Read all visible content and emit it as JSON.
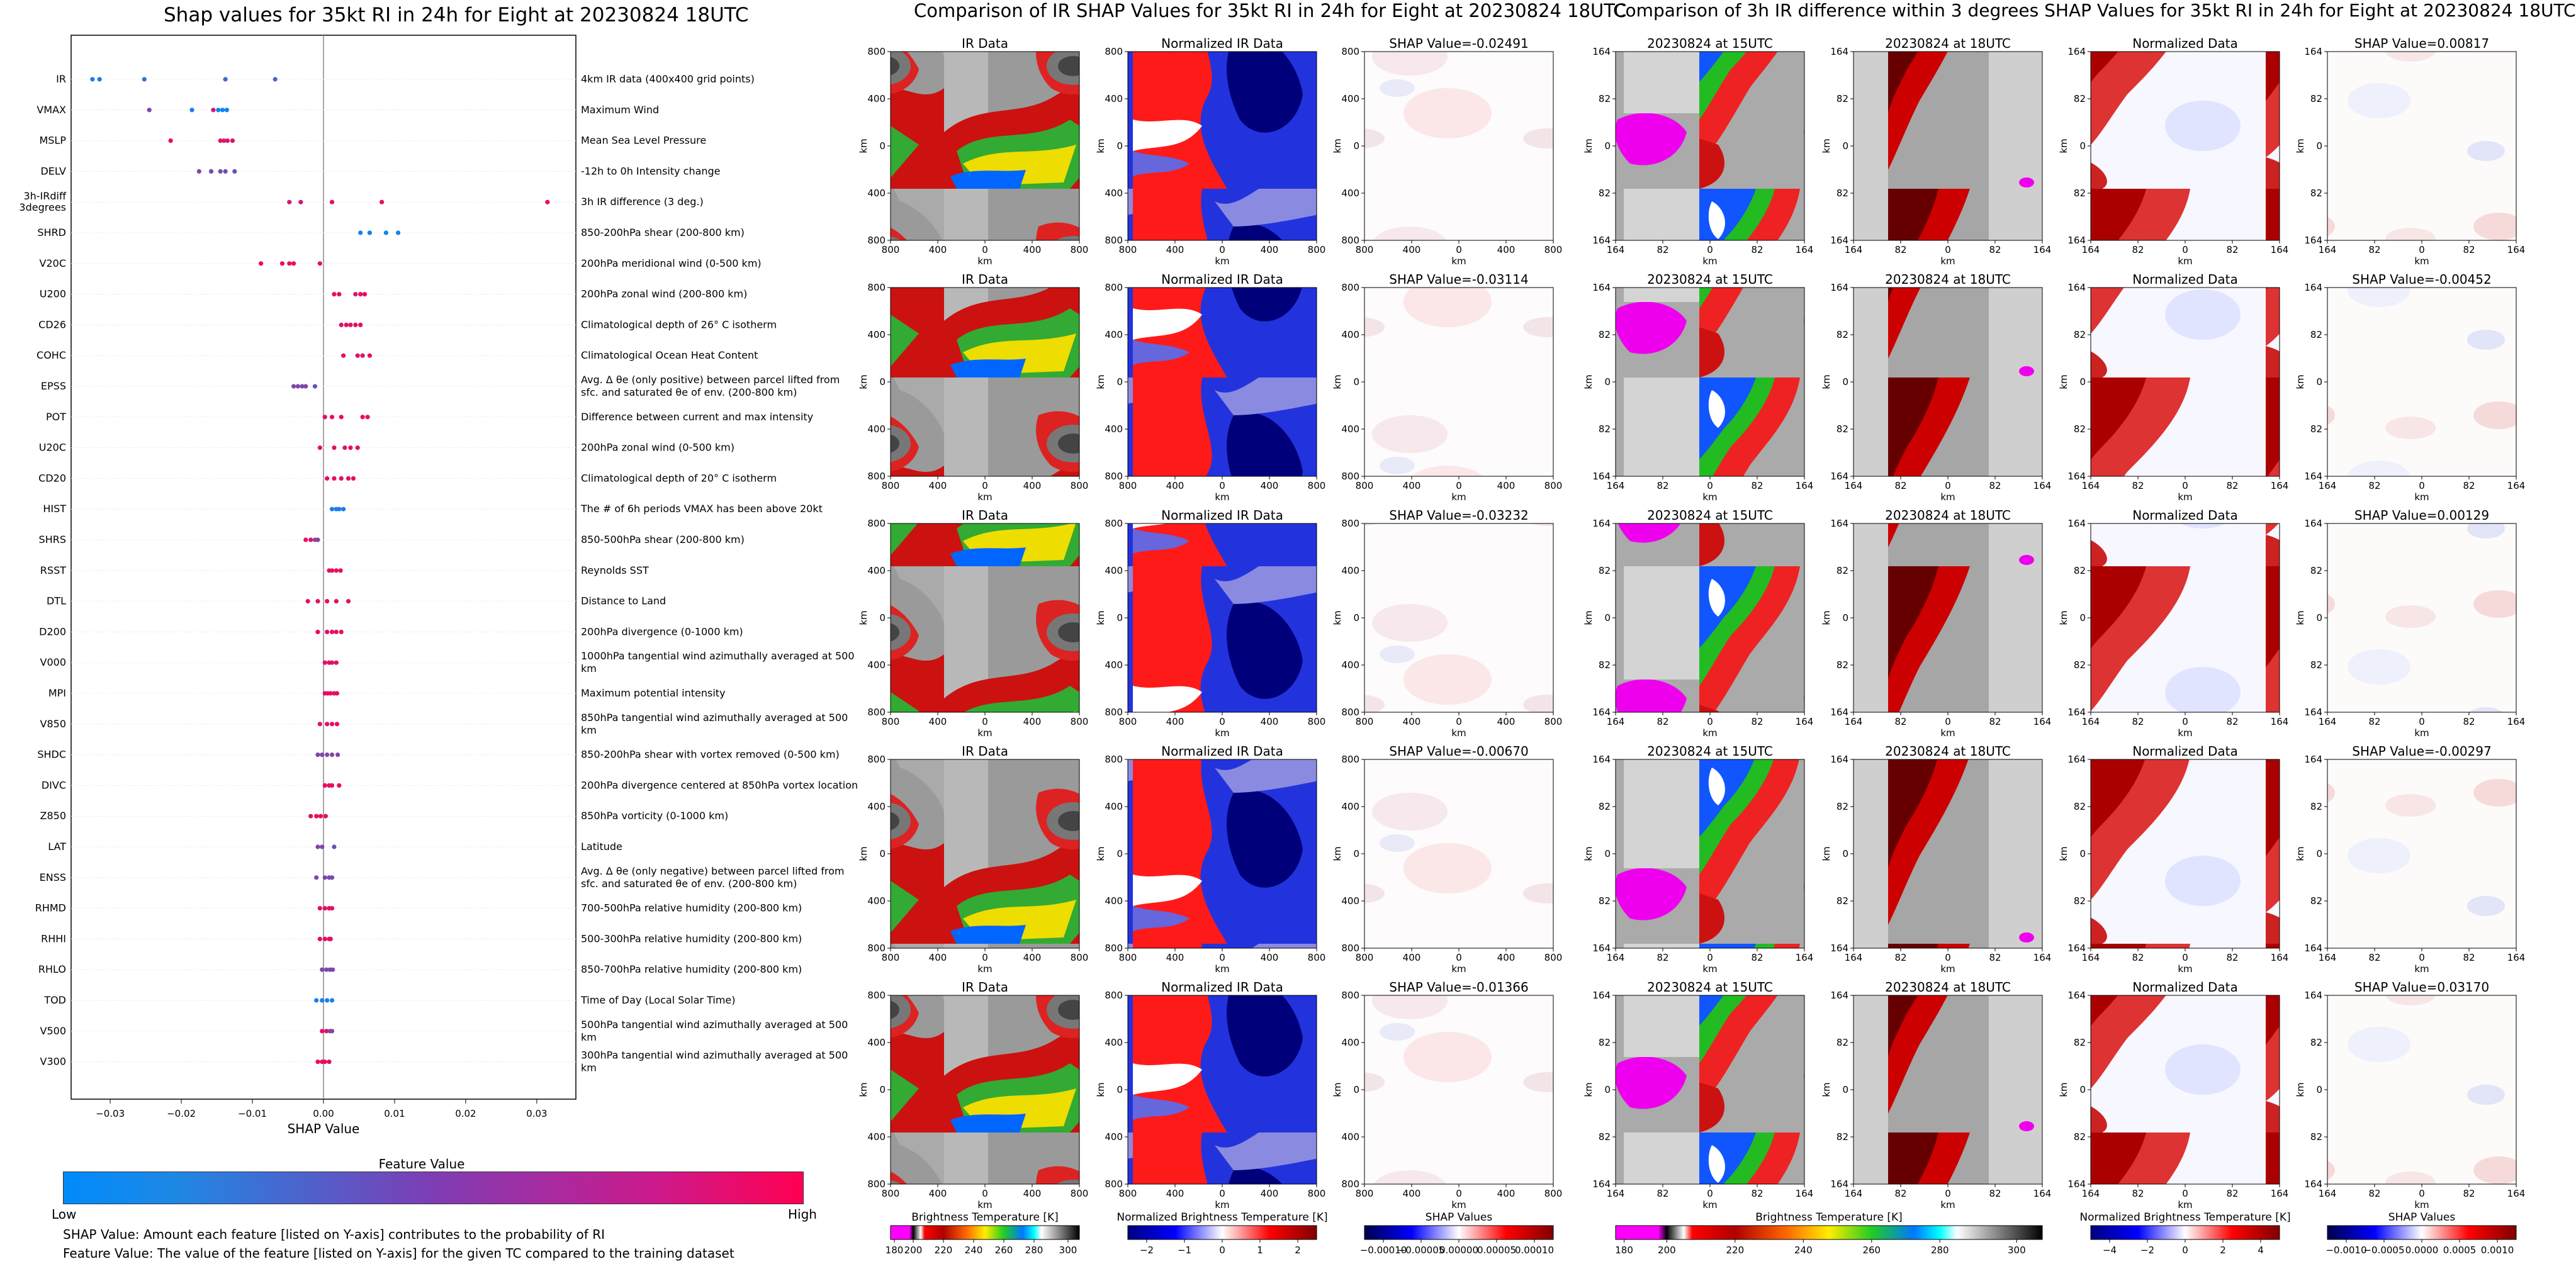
{
  "shap_summary": {
    "title": "Shap values for 35kt RI in 24h for Eight at 20230824 18UTC",
    "xlabel": "SHAP Value",
    "xticks": [
      "−0.03",
      "−0.02",
      "−0.01",
      "0.00",
      "0.01",
      "0.02",
      "0.03"
    ],
    "colorbar_title": "Feature Value",
    "colorbar_low": "Low",
    "colorbar_high": "High",
    "note1": "SHAP Value: Amount each feature [listed on Y-axis] contributes to the probability of RI",
    "note2": "Feature Value: The value of the feature [listed on Y-axis] for the given TC compared to the training dataset"
  },
  "ir_comparison": {
    "title": "Comparison of IR SHAP Values for 35kt RI in 24h for Eight at 20230824 18UTC",
    "col_titles": [
      "IR Data",
      "Normalized IR Data"
    ],
    "shap_titles": [
      "SHAP Value=-0.02491",
      "SHAP Value=-0.03114",
      "SHAP Value=-0.03232",
      "SHAP Value=-0.00670",
      "SHAP Value=-0.01366"
    ],
    "axis_ticks": [
      "800",
      "400",
      "0",
      "400",
      "800"
    ],
    "axis_label": "km",
    "colorbars": [
      {
        "label": "Brightness Temperature [K]",
        "ticks": [
          "180",
          "200",
          "220",
          "240",
          "260",
          "280",
          "300"
        ]
      },
      {
        "label": "Normalized Brightness Temperature [K]",
        "ticks": [
          "−2",
          "−1",
          "0",
          "1",
          "2"
        ]
      },
      {
        "label": "SHAP Values",
        "ticks": [
          "−0.00010",
          "−0.00005",
          "0.00000",
          "0.00005",
          "0.00010"
        ]
      }
    ]
  },
  "diff_comparison": {
    "title": "Comparison of 3h IR difference within 3 degrees SHAP Values for 35kt RI in 24h for Eight at 20230824 18UTC",
    "col_titles": [
      "20230824 at 15UTC",
      "20230824 at 18UTC",
      "Normalized Data"
    ],
    "shap_titles": [
      "SHAP Value=0.00817",
      "SHAP Value=-0.00452",
      "SHAP Value=0.00129",
      "SHAP Value=-0.00297",
      "SHAP Value=0.03170"
    ],
    "axis_ticks": [
      "164",
      "82",
      "0",
      "82",
      "164"
    ],
    "axis_label": "km",
    "colorbars": [
      {
        "label": "Brightness Temperature [K]",
        "ticks": [
          "180",
          "200",
          "220",
          "240",
          "260",
          "280",
          "300"
        ]
      },
      {
        "label": "Normalized Brightness Temperature [K]",
        "ticks": [
          "−4",
          "−2",
          "0",
          "2",
          "4"
        ]
      },
      {
        "label": "SHAP Values",
        "ticks": [
          "−0.0010",
          "−0.0005",
          "0.0000",
          "0.0005",
          "0.0010"
        ]
      }
    ]
  },
  "chart_data": {
    "type": "scatter",
    "title": "Shap values for 35kt RI in 24h for Eight at 20230824 18UTC",
    "xlabel": "SHAP Value",
    "xlim": [
      -0.0355,
      0.0355
    ],
    "color_scale": {
      "low": "#008bfb",
      "high": "#ff0052"
    },
    "features": [
      {
        "name": "IR",
        "desc": "4km IR data (400x400 grid points)",
        "points": [
          [
            -0.0325,
            0.1
          ],
          [
            -0.0315,
            0.12
          ],
          [
            -0.0252,
            0.2
          ],
          [
            -0.0138,
            0.25
          ],
          [
            -0.0068,
            0.3
          ]
        ]
      },
      {
        "name": "VMAX",
        "desc": "Maximum Wind",
        "points": [
          [
            -0.0245,
            0.5
          ],
          [
            -0.0185,
            0.1
          ],
          [
            -0.0155,
            0.8
          ],
          [
            -0.0148,
            0.05
          ],
          [
            -0.0142,
            0.05
          ],
          [
            -0.0136,
            0.05
          ]
        ]
      },
      {
        "name": "MSLP",
        "desc": "Mean Sea Level Pressure",
        "points": [
          [
            -0.0215,
            0.95
          ],
          [
            -0.0145,
            0.9
          ],
          [
            -0.014,
            0.85
          ],
          [
            -0.0135,
            0.85
          ],
          [
            -0.0128,
            0.9
          ]
        ]
      },
      {
        "name": "DELV",
        "desc": "-12h to 0h Intensity change",
        "points": [
          [
            -0.0175,
            0.5
          ],
          [
            -0.0158,
            0.45
          ],
          [
            -0.0145,
            0.4
          ],
          [
            -0.0138,
            0.45
          ],
          [
            -0.0125,
            0.4
          ]
        ]
      },
      {
        "name": "3h-IRdiff 3degrees",
        "desc": "3h IR difference (3 deg.)",
        "points": [
          [
            -0.0048,
            0.8
          ],
          [
            -0.0032,
            0.85
          ],
          [
            0.0012,
            0.9
          ],
          [
            0.0082,
            0.9
          ],
          [
            0.0315,
            0.95
          ]
        ]
      },
      {
        "name": "SHRD",
        "desc": "850-200hPa shear (200-800 km)",
        "points": [
          [
            0.0052,
            0.05
          ],
          [
            0.0065,
            0.1
          ],
          [
            0.0088,
            0.05
          ],
          [
            0.0105,
            0.1
          ]
        ]
      },
      {
        "name": "V20C",
        "desc": "200hPa meridional wind (0-500 km)",
        "points": [
          [
            -0.0088,
            0.95
          ],
          [
            -0.0058,
            0.95
          ],
          [
            -0.0048,
            0.9
          ],
          [
            -0.0042,
            0.95
          ],
          [
            -0.0005,
            0.9
          ]
        ]
      },
      {
        "name": "U200",
        "desc": "200hPa zonal wind (200-800 km)",
        "points": [
          [
            0.0015,
            0.9
          ],
          [
            0.0022,
            0.9
          ],
          [
            0.0045,
            0.85
          ],
          [
            0.0052,
            0.9
          ],
          [
            0.0058,
            0.95
          ]
        ]
      },
      {
        "name": "CD26",
        "desc": "Climatological depth of 26° C isotherm",
        "points": [
          [
            0.0025,
            0.9
          ],
          [
            0.0032,
            0.9
          ],
          [
            0.0038,
            0.85
          ],
          [
            0.0045,
            0.9
          ],
          [
            0.0052,
            0.9
          ]
        ]
      },
      {
        "name": "COHC",
        "desc": "Climatological Ocean Heat Content",
        "points": [
          [
            0.0028,
            0.9
          ],
          [
            0.0048,
            0.9
          ],
          [
            0.0055,
            0.85
          ],
          [
            0.0065,
            0.9
          ]
        ]
      },
      {
        "name": "EPSS",
        "desc": "Avg. Δ θe (only positive) between parcel lifted from sfc. and saturated θe of env. (200-800 km)",
        "points": [
          [
            -0.0042,
            0.5
          ],
          [
            -0.0036,
            0.5
          ],
          [
            -0.003,
            0.45
          ],
          [
            -0.0025,
            0.5
          ],
          [
            -0.0012,
            0.4
          ]
        ]
      },
      {
        "name": "POT",
        "desc": "Difference between current and max intensity",
        "points": [
          [
            0.0002,
            0.9
          ],
          [
            0.0012,
            0.9
          ],
          [
            0.0025,
            0.95
          ],
          [
            0.0055,
            0.9
          ],
          [
            0.0062,
            0.9
          ]
        ]
      },
      {
        "name": "U20C",
        "desc": "200hPa zonal wind (0-500 km)",
        "points": [
          [
            -0.0005,
            0.9
          ],
          [
            0.0015,
            0.9
          ],
          [
            0.003,
            0.85
          ],
          [
            0.0038,
            0.9
          ],
          [
            0.0048,
            0.9
          ]
        ]
      },
      {
        "name": "CD20",
        "desc": "Climatological depth of 20° C isotherm",
        "points": [
          [
            0.0005,
            0.9
          ],
          [
            0.0015,
            0.9
          ],
          [
            0.0025,
            0.85
          ],
          [
            0.0035,
            0.9
          ],
          [
            0.0042,
            0.9
          ]
        ]
      },
      {
        "name": "HIST",
        "desc": "The # of 6h periods VMAX has been above 20kt",
        "points": [
          [
            0.0012,
            0.1
          ],
          [
            0.0018,
            0.1
          ],
          [
            0.0022,
            0.1
          ],
          [
            0.0028,
            0.1
          ]
        ]
      },
      {
        "name": "SHRS",
        "desc": "850-500hPa shear (200-800 km)",
        "points": [
          [
            -0.0025,
            0.9
          ],
          [
            -0.0018,
            0.9
          ],
          [
            -0.0012,
            0.5
          ],
          [
            -0.0008,
            0.55
          ]
        ]
      },
      {
        "name": "RSST",
        "desc": "Reynolds SST",
        "points": [
          [
            0.0008,
            0.9
          ],
          [
            0.0012,
            0.9
          ],
          [
            0.0018,
            0.9
          ],
          [
            0.0024,
            0.9
          ]
        ]
      },
      {
        "name": "DTL",
        "desc": "Distance to Land",
        "points": [
          [
            -0.0022,
            0.9
          ],
          [
            -0.0008,
            0.9
          ],
          [
            0.0005,
            0.9
          ],
          [
            0.0018,
            0.9
          ],
          [
            0.0035,
            0.9
          ]
        ]
      },
      {
        "name": "D200",
        "desc": "200hPa divergence (0-1000 km)",
        "points": [
          [
            -0.0008,
            0.9
          ],
          [
            0.0005,
            0.9
          ],
          [
            0.0012,
            0.9
          ],
          [
            0.0018,
            0.9
          ],
          [
            0.0025,
            0.9
          ]
        ]
      },
      {
        "name": "V000",
        "desc": "1000hPa tangential wind azimuthally averaged at 500 km",
        "points": [
          [
            0.0002,
            0.9
          ],
          [
            0.0008,
            0.9
          ],
          [
            0.0012,
            0.85
          ],
          [
            0.0018,
            0.9
          ]
        ]
      },
      {
        "name": "MPI",
        "desc": "Maximum potential intensity",
        "points": [
          [
            0.0002,
            0.9
          ],
          [
            0.0006,
            0.9
          ],
          [
            0.001,
            0.9
          ],
          [
            0.0015,
            0.9
          ],
          [
            0.0019,
            0.9
          ]
        ]
      },
      {
        "name": "V850",
        "desc": "850hPa tangential wind azimuthally averaged at 500 km",
        "points": [
          [
            -0.0005,
            0.9
          ],
          [
            0.0005,
            0.9
          ],
          [
            0.0012,
            0.9
          ],
          [
            0.0019,
            0.9
          ]
        ]
      },
      {
        "name": "SHDC",
        "desc": "850-200hPa shear with vortex removed (0-500 km)",
        "points": [
          [
            -0.0008,
            0.5
          ],
          [
            -0.0002,
            0.5
          ],
          [
            0.0005,
            0.5
          ],
          [
            0.0012,
            0.5
          ],
          [
            0.002,
            0.5
          ]
        ]
      },
      {
        "name": "DIVC",
        "desc": "200hPa divergence centered at 850hPa vortex location",
        "points": [
          [
            0.0002,
            0.9
          ],
          [
            0.0008,
            0.9
          ],
          [
            0.0012,
            0.9
          ],
          [
            0.0022,
            0.9
          ]
        ]
      },
      {
        "name": "Z850",
        "desc": "850hPa vorticity (0-1000 km)",
        "points": [
          [
            -0.0018,
            0.9
          ],
          [
            -0.001,
            0.9
          ],
          [
            -0.0004,
            0.9
          ],
          [
            0.0003,
            0.9
          ]
        ]
      },
      {
        "name": "LAT",
        "desc": "Latitude",
        "points": [
          [
            -0.0008,
            0.5
          ],
          [
            -0.0002,
            0.5
          ],
          [
            0.0015,
            0.4
          ]
        ]
      },
      {
        "name": "ENSS",
        "desc": "Avg. Δ θe (only negative) between parcel lifted from sfc. and saturated θe of env. (200-800 km)",
        "points": [
          [
            -0.001,
            0.5
          ],
          [
            0.0002,
            0.5
          ],
          [
            0.0008,
            0.5
          ],
          [
            0.0012,
            0.45
          ]
        ]
      },
      {
        "name": "RHMD",
        "desc": "700-500hPa relative humidity (200-800 km)",
        "points": [
          [
            -0.0005,
            0.9
          ],
          [
            0.0002,
            0.9
          ],
          [
            0.0008,
            0.9
          ],
          [
            0.0012,
            0.9
          ]
        ]
      },
      {
        "name": "RHHI",
        "desc": "500-300hPa relative humidity (200-800 km)",
        "points": [
          [
            -0.0005,
            0.9
          ],
          [
            0.0002,
            0.9
          ],
          [
            0.0008,
            0.9
          ],
          [
            0.001,
            0.9
          ]
        ]
      },
      {
        "name": "RHLO",
        "desc": "850-700hPa relative humidity (200-800 km)",
        "points": [
          [
            -0.0002,
            0.5
          ],
          [
            0.0004,
            0.5
          ],
          [
            0.0009,
            0.5
          ],
          [
            0.0013,
            0.5
          ]
        ]
      },
      {
        "name": "TOD",
        "desc": "Time of Day (Local Solar Time)",
        "points": [
          [
            -0.001,
            0.1
          ],
          [
            -0.0002,
            0.1
          ],
          [
            0.0005,
            0.1
          ],
          [
            0.0012,
            0.1
          ]
        ]
      },
      {
        "name": "V500",
        "desc": "500hPa tangential wind azimuthally averaged at 500 km",
        "points": [
          [
            -0.0002,
            0.9
          ],
          [
            0.0004,
            0.9
          ],
          [
            0.0009,
            0.5
          ],
          [
            0.0012,
            0.5
          ]
        ]
      },
      {
        "name": "V300",
        "desc": "300hPa tangential wind azimuthally averaged at 500 km",
        "points": [
          [
            -0.0008,
            0.9
          ],
          [
            -0.0002,
            0.9
          ],
          [
            0.0002,
            0.9
          ],
          [
            0.0008,
            0.9
          ]
        ]
      }
    ]
  }
}
